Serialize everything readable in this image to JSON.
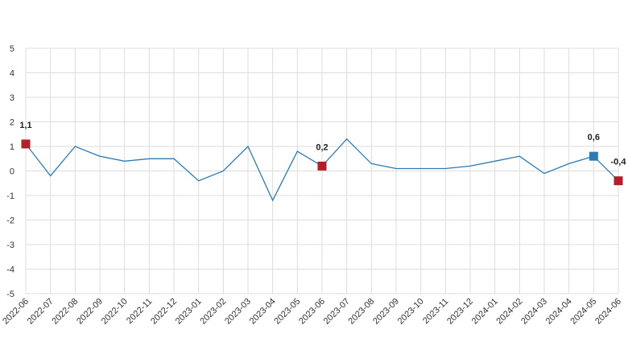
{
  "chart_data": {
    "type": "line",
    "title": "",
    "xlabel": "",
    "ylabel": "",
    "ylim": [
      -5,
      5
    ],
    "y_ticks": [
      "5",
      "4",
      "3",
      "2",
      "1",
      "0",
      "-1",
      "-2",
      "-3",
      "-4",
      "-5"
    ],
    "grid": true,
    "legend": "none",
    "categories": [
      "2022-06",
      "2022-07",
      "2022-08",
      "2022-09",
      "2022-10",
      "2022-11",
      "2022-12",
      "2023-01",
      "2023-02",
      "2023-03",
      "2023-04",
      "2023-05",
      "2023-06",
      "2023-07",
      "2023-08",
      "2023-09",
      "2023-10",
      "2023-11",
      "2023-12",
      "2024-01",
      "2024-02",
      "2024-03",
      "2024-04",
      "2024-05",
      "2024-06"
    ],
    "series": [
      {
        "color": "#2e7bb0",
        "values": [
          1.1,
          -0.2,
          1.0,
          0.6,
          0.4,
          0.5,
          0.5,
          -0.4,
          0.0,
          1.0,
          -1.2,
          0.8,
          0.2,
          1.3,
          0.3,
          0.1,
          0.1,
          0.1,
          0.2,
          0.4,
          0.6,
          -0.1,
          0.3,
          0.6,
          -0.4
        ]
      }
    ],
    "highlights": [
      {
        "category": "2022-06",
        "value": 1.1,
        "label": "1,1",
        "color": "#b0202a"
      },
      {
        "category": "2023-06",
        "value": 0.2,
        "label": "0,2",
        "color": "#b0202a"
      },
      {
        "category": "2024-05",
        "value": 0.6,
        "label": "0,6",
        "color": "#2e7bb0"
      },
      {
        "category": "2024-06",
        "value": -0.4,
        "label": "-0,4",
        "color": "#b0202a"
      }
    ]
  }
}
